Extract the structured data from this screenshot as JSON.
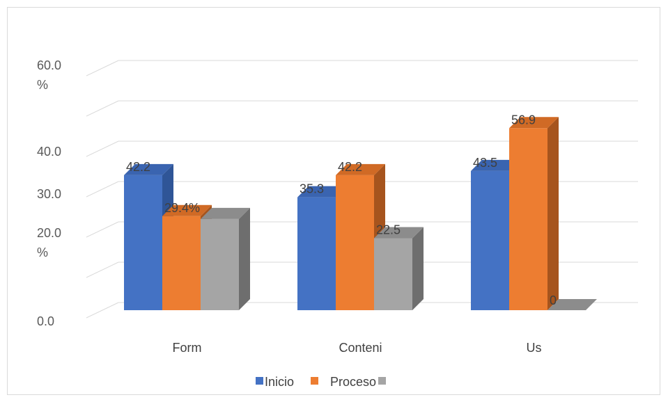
{
  "chart_data": {
    "type": "bar",
    "subtype": "3d-clustered-column",
    "title": "",
    "xlabel": "",
    "ylabel": "",
    "categories": [
      "Form",
      "Conteni",
      "Us"
    ],
    "series": [
      {
        "name": "Inicio",
        "values": [
          42.2,
          35.3,
          43.5
        ],
        "color": "#4472C4",
        "side": "#2F5597",
        "top": "#3A64B0"
      },
      {
        "name": "Proceso",
        "values": [
          29.4,
          42.2,
          56.9
        ],
        "color": "#ED7D31",
        "side": "#A6541D",
        "top": "#D06A25"
      },
      {
        "name": "",
        "values": [
          28.5,
          22.5,
          0
        ],
        "color": "#A5A5A5",
        "side": "#6E6E6E",
        "top": "#8C8C8C"
      }
    ],
    "data_labels": [
      [
        "42.2",
        "35.3",
        "43.5"
      ],
      [
        "29.4%",
        "42.2",
        "56.9"
      ],
      [
        "",
        "22.5",
        "0"
      ]
    ],
    "y_tick_labels": [
      {
        "value": 0,
        "text": "0.0"
      },
      {
        "value": 20,
        "text": "20.0 %"
      },
      {
        "value": 30,
        "text": "30.0"
      },
      {
        "value": 40,
        "text": "40.0"
      },
      {
        "value": 60,
        "text": "60.0 %"
      }
    ],
    "ylim": [
      0,
      60
    ],
    "grid": true,
    "legend_position": "bottom"
  }
}
